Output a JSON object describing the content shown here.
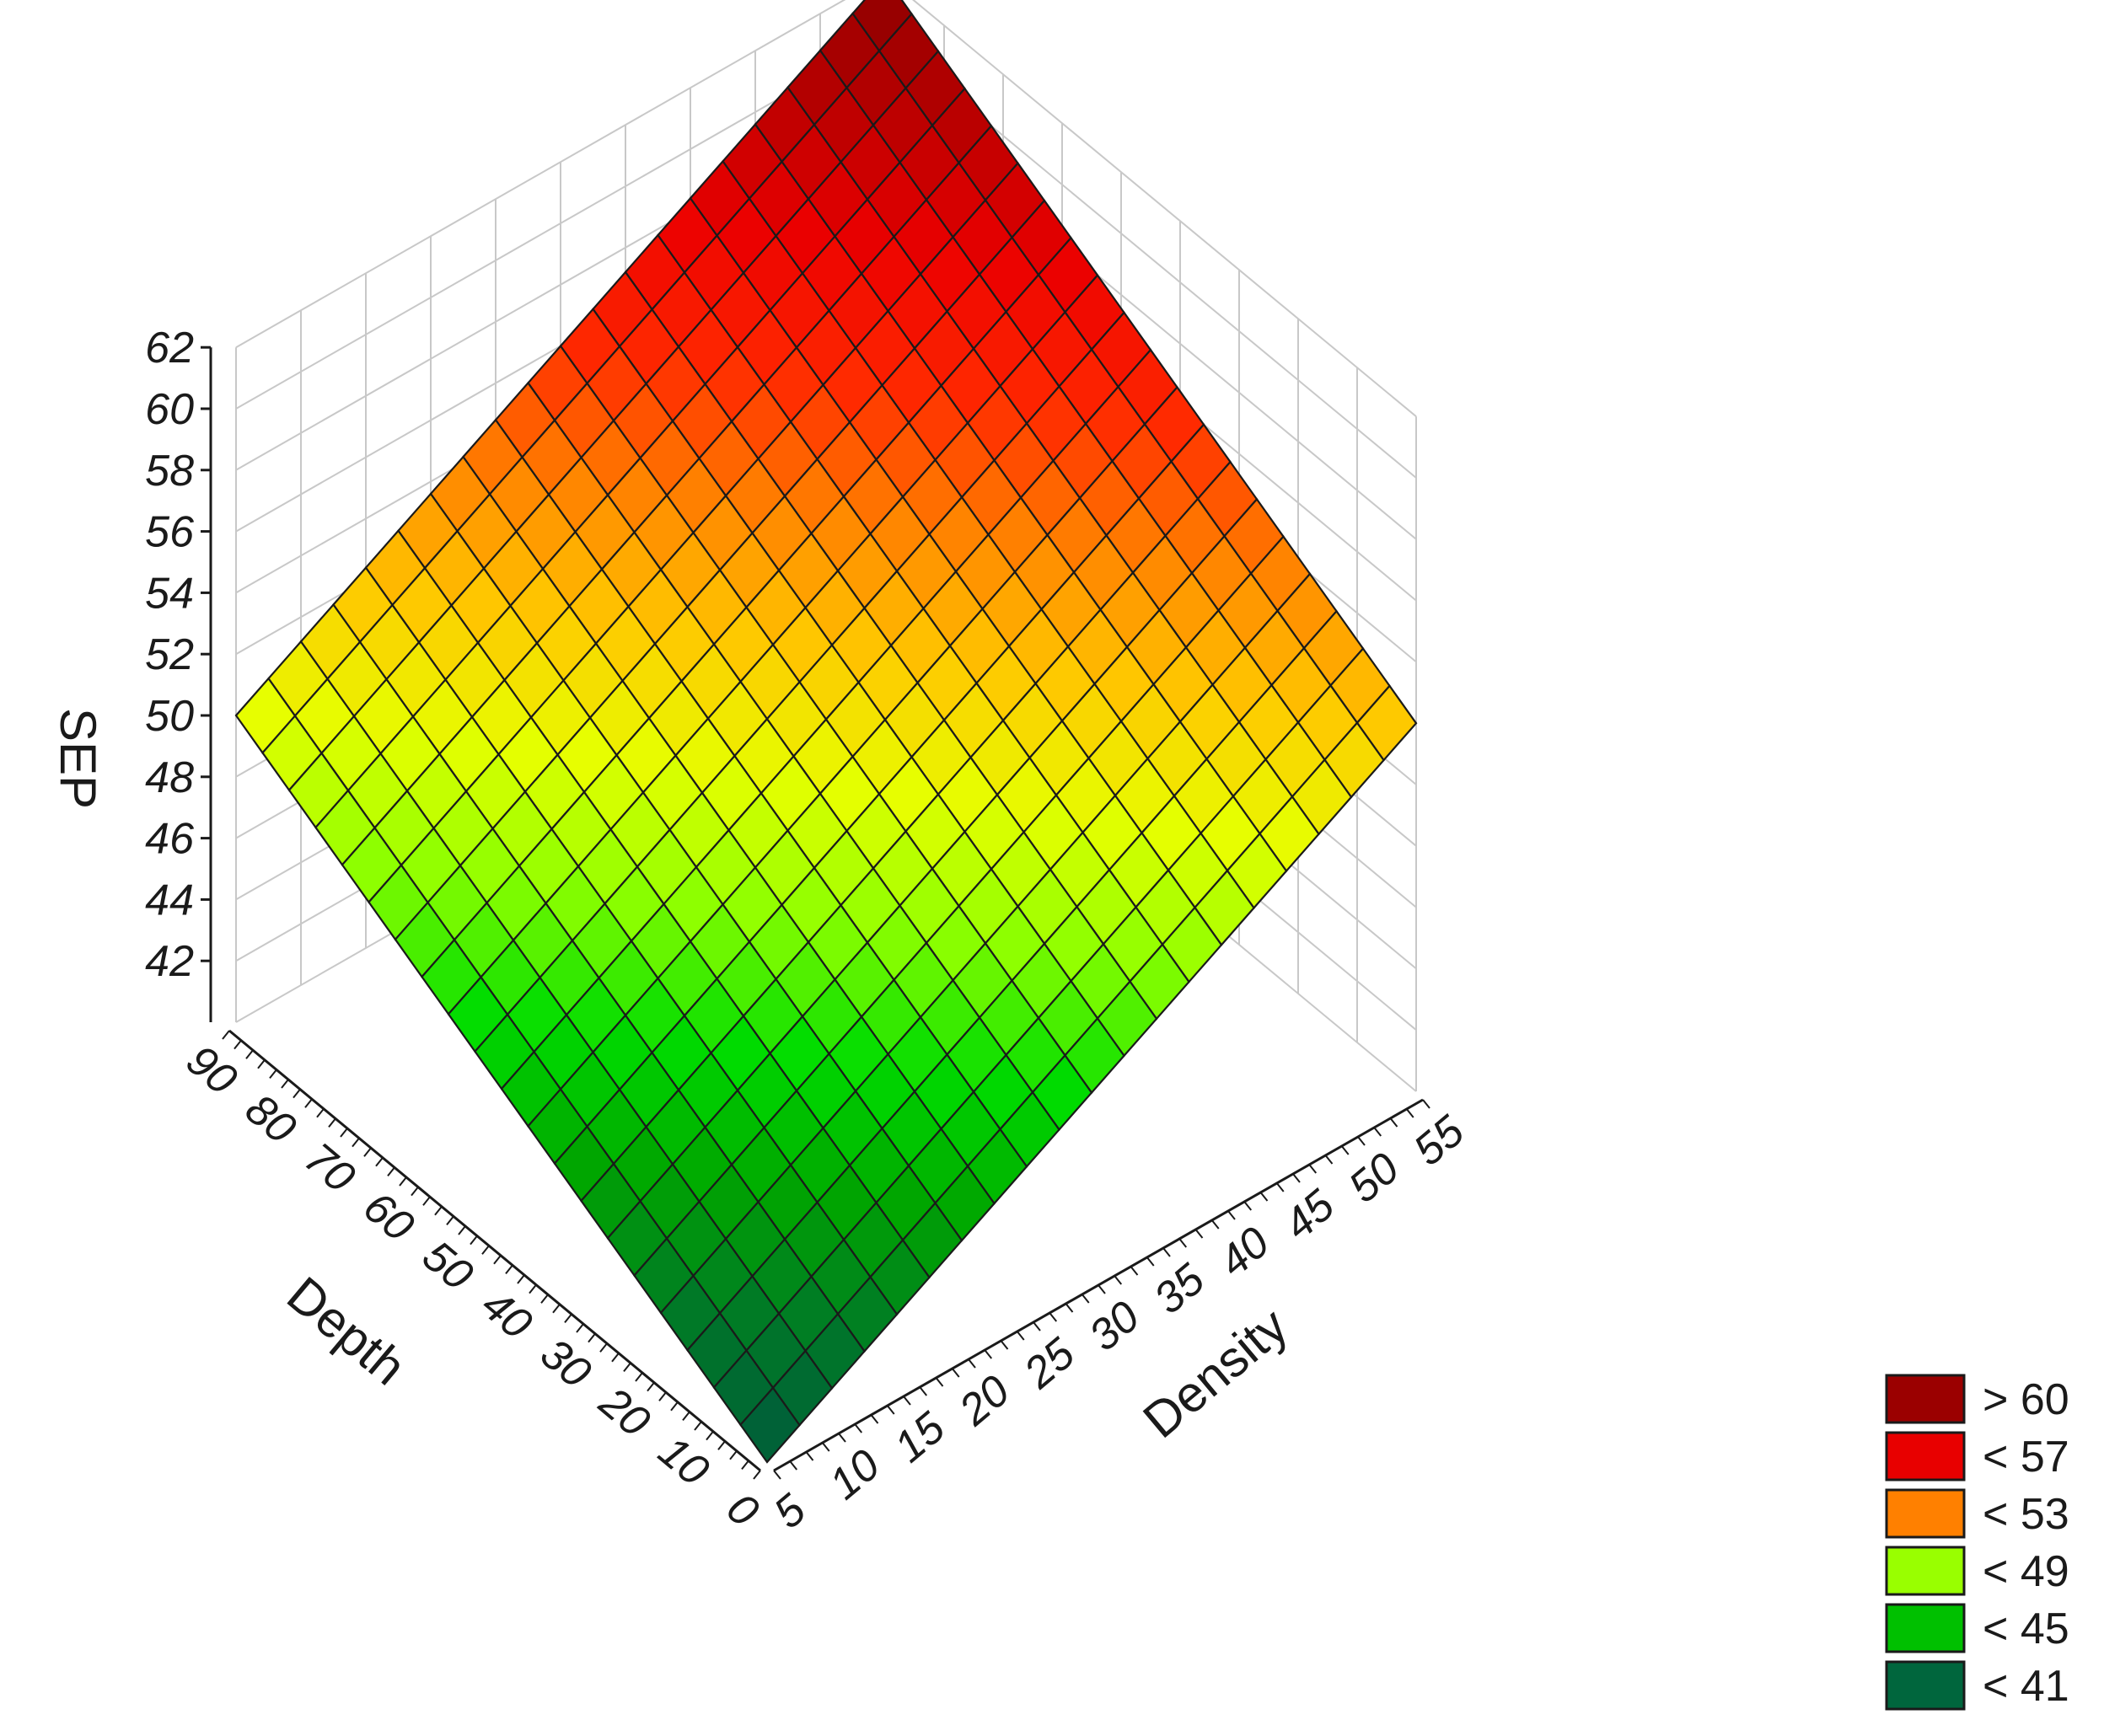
{
  "chart_data": {
    "type": "surface",
    "title": "",
    "zlabel": "SEP",
    "xlabel": "Density",
    "ylabel": "Depth",
    "xlim": [
      5,
      55
    ],
    "ylim": [
      0,
      90
    ],
    "zlim": [
      40,
      62
    ],
    "x_ticks": [
      "5",
      "10",
      "15",
      "20",
      "25",
      "30",
      "35",
      "40",
      "45",
      "50",
      "55"
    ],
    "y_ticks": [
      "0",
      "10",
      "20",
      "30",
      "40",
      "50",
      "60",
      "70",
      "80",
      "90"
    ],
    "z_ticks": [
      "42",
      "44",
      "46",
      "48",
      "50",
      "52",
      "54",
      "56",
      "58",
      "60",
      "62"
    ],
    "surface_corners": [
      {
        "density": 5,
        "depth": 0,
        "sep": 40
      },
      {
        "density": 55,
        "depth": 0,
        "sep": 52
      },
      {
        "density": 5,
        "depth": 90,
        "sep": 50
      },
      {
        "density": 55,
        "depth": 90,
        "sep": 62
      }
    ],
    "grid_divisions": 20,
    "grid": true,
    "legend_position": "bottom-right",
    "legend": [
      {
        "label": "> 60",
        "color": "#9b0000"
      },
      {
        "label": "< 57",
        "color": "#e80000"
      },
      {
        "label": "< 53",
        "color": "#ff8000"
      },
      {
        "label": "< 49",
        "color": "#99ff00"
      },
      {
        "label": "< 45",
        "color": "#00c000"
      },
      {
        "label": "< 41",
        "color": "#00663d"
      }
    ]
  }
}
